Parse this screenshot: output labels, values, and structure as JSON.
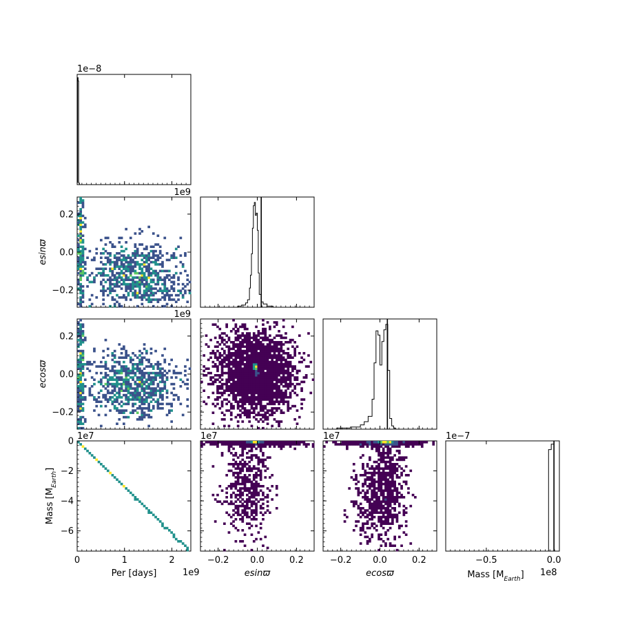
{
  "chart_data": {
    "type": "corner",
    "colormap": [
      "#440154",
      "#3b528b",
      "#21918c",
      "#5ec962",
      "#fde725"
    ],
    "axis_labels": {
      "per": "Per [days]",
      "esin": "esinϖ",
      "ecos": "ecosϖ",
      "mass": "Mass [M",
      "mass_sub": "Earth",
      "mass_close": "]"
    },
    "ranges": {
      "per": [
        0,
        2400000000
      ],
      "esin": [
        -0.29,
        0.29
      ],
      "ecos": [
        -0.29,
        0.29
      ],
      "mass": [
        -73500000,
        0
      ]
    },
    "ticks": {
      "per": {
        "values": [
          0,
          1000000000,
          2000000000
        ],
        "labels": [
          "0",
          "1",
          "2"
        ],
        "offset": "1e9"
      },
      "esin": {
        "values": [
          -0.2,
          0.0,
          0.2
        ],
        "labels": [
          "−0.2",
          "0.0",
          "0.2"
        ]
      },
      "ecos": {
        "values": [
          -0.2,
          0.0,
          0.2
        ],
        "labels": [
          "−0.2",
          "0.0",
          "0.2"
        ]
      },
      "mass_y": {
        "values": [
          0,
          -20000000,
          -40000000,
          -60000000
        ],
        "labels": [
          "0",
          "−2",
          "−4",
          "−6"
        ],
        "offset": "1e7"
      },
      "mass_x": {
        "values": [
          -50000000,
          0
        ],
        "labels": [
          "−0.5",
          "0.0"
        ],
        "offset": "1e8"
      },
      "mass_x_range": [
        -80000000,
        4000000
      ]
    },
    "panel_offsets": {
      "per_hist": "1e−8",
      "esin_per": "1e9",
      "ecos_per": "1e9",
      "mass_per": "1e7",
      "mass_esin": "1e7",
      "mass_ecos": "1e7",
      "mass_hist": "1e−7"
    },
    "histograms": {
      "per": {
        "type": "step",
        "x": [
          0,
          10000000,
          20000000,
          30000000,
          40000000,
          50000000,
          60000000,
          70000000
        ],
        "height": [
          0.02,
          1.0,
          0.97,
          0.02,
          0.01,
          0.0,
          0.0,
          0.0
        ]
      },
      "esin": {
        "type": "step",
        "x": [
          -0.13,
          -0.1,
          -0.08,
          -0.06,
          -0.05,
          -0.04,
          -0.035,
          -0.03,
          -0.025,
          -0.02,
          -0.015,
          -0.01,
          -0.005,
          0.0,
          0.005,
          0.01,
          0.02,
          0.03,
          0.05,
          0.08,
          0.12
        ],
        "height": [
          0.0,
          0.01,
          0.02,
          0.04,
          0.07,
          0.18,
          0.3,
          0.5,
          0.74,
          0.95,
          0.98,
          0.86,
          0.88,
          0.72,
          0.32,
          0.12,
          0.05,
          0.03,
          0.01,
          0.0
        ],
        "vline": 0.02
      },
      "ecos": {
        "type": "step",
        "x": [
          -0.22,
          -0.15,
          -0.1,
          -0.08,
          -0.06,
          -0.04,
          -0.03,
          -0.02,
          -0.01,
          0.0,
          0.01,
          0.02,
          0.03,
          0.04,
          0.05,
          0.06,
          0.07,
          0.08,
          0.1
        ],
        "height": [
          0.01,
          0.02,
          0.04,
          0.07,
          0.12,
          0.28,
          0.62,
          0.92,
          0.88,
          0.6,
          0.82,
          0.93,
          0.98,
          0.55,
          0.1,
          0.03,
          0.01,
          0.0
        ],
        "vline": 0.038
      },
      "mass": {
        "type": "step",
        "x": [
          -4000000,
          -2000000,
          0
        ],
        "height": [
          0.95,
          1.0
        ],
        "vline": 0
      }
    },
    "density_panels": {
      "esin_vs_per": {
        "x": "per",
        "y": "esin",
        "blobs": [
          {
            "cx": 80000000,
            "cy": 0.0,
            "sx": 40000000,
            "sy": 0.2,
            "n": 250
          },
          {
            "cx": 1200000000,
            "cy": -0.1,
            "sx": 500000000,
            "sy": 0.08,
            "n": 600
          },
          {
            "cx": 1500000000,
            "cy": -0.2,
            "sx": 600000000,
            "sy": 0.04,
            "n": 200
          }
        ]
      },
      "ecos_vs_per": {
        "x": "per",
        "y": "ecos",
        "blobs": [
          {
            "cx": 80000000,
            "cy": 0.0,
            "sx": 40000000,
            "sy": 0.2,
            "n": 250
          },
          {
            "cx": 1200000000,
            "cy": -0.03,
            "sx": 500000000,
            "sy": 0.08,
            "n": 600
          },
          {
            "cx": 1300000000,
            "cy": -0.15,
            "sx": 400000000,
            "sy": 0.06,
            "n": 150
          }
        ]
      },
      "ecos_vs_esin": {
        "x": "esin",
        "y": "ecos",
        "blobs": [
          {
            "cx": -0.01,
            "cy": 0.0,
            "sx": 0.1,
            "sy": 0.11,
            "n": 2600
          },
          {
            "cx": -0.01,
            "cy": 0.04,
            "sx": 0.004,
            "sy": 0.01,
            "n": 420
          },
          {
            "cx": 0.0,
            "cy": 0.0,
            "sx": 0.002,
            "sy": 0.003,
            "n": 60
          }
        ]
      },
      "mass_vs_per": {
        "x": "per",
        "y": "mass",
        "line": {
          "x0": 20000000,
          "x1": 2350000000,
          "y0": -500000,
          "y1": -72500000,
          "steps": 58
        }
      },
      "mass_vs_esin": {
        "x": "esin",
        "y": "mass",
        "blobs": [
          {
            "cx": -0.05,
            "cy": -32000000,
            "sx": 0.06,
            "sy": 16000000,
            "n": 500
          },
          {
            "cx": 0.0,
            "cy": -1000000,
            "sx": 0.13,
            "sy": 1200000,
            "n": 500
          },
          {
            "cx": -0.01,
            "cy": -200000,
            "sx": 0.015,
            "sy": 300000,
            "n": 300
          }
        ]
      },
      "mass_vs_ecos": {
        "x": "ecos",
        "y": "mass",
        "blobs": [
          {
            "cx": 0.0,
            "cy": -38000000,
            "sx": 0.065,
            "sy": 15000000,
            "n": 650
          },
          {
            "cx": 0.04,
            "cy": -20000000,
            "sx": 0.03,
            "sy": 15000000,
            "n": 200
          },
          {
            "cx": 0.0,
            "cy": -1000000,
            "sx": 0.12,
            "sy": 1200000,
            "n": 500
          },
          {
            "cx": 0.03,
            "cy": -200000,
            "sx": 0.02,
            "sy": 300000,
            "n": 300
          }
        ]
      }
    }
  }
}
